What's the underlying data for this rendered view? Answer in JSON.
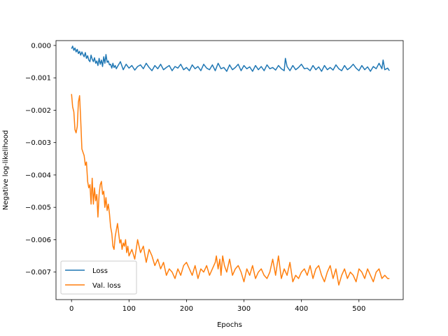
{
  "chart_data": {
    "type": "line",
    "title": "",
    "xlabel": "Epochs",
    "ylabel": "Negative log-likelihood",
    "xlim": [
      -27,
      577
    ],
    "ylim": [
      -0.00785,
      0.00015
    ],
    "xticks": [
      0,
      100,
      200,
      300,
      400,
      500
    ],
    "xtick_labels": [
      "0",
      "100",
      "200",
      "300",
      "400",
      "500"
    ],
    "yticks": [
      0,
      -0.001,
      -0.002,
      -0.003,
      -0.004,
      -0.005,
      -0.006,
      -0.007
    ],
    "ytick_labels": [
      "0.000",
      "−0.001",
      "−0.002",
      "−0.003",
      "−0.004",
      "−0.005",
      "−0.006",
      "−0.007"
    ],
    "grid": false,
    "legend_position": "lower-left",
    "series": [
      {
        "name": "Loss",
        "color": "#1f77b4",
        "x": [
          0,
          2,
          4,
          6,
          8,
          10,
          12,
          14,
          16,
          18,
          20,
          22,
          24,
          26,
          28,
          30,
          32,
          34,
          36,
          38,
          40,
          42,
          44,
          46,
          48,
          50,
          52,
          54,
          56,
          58,
          60,
          62,
          64,
          66,
          68,
          70,
          72,
          74,
          76,
          78,
          80,
          85,
          90,
          95,
          100,
          105,
          110,
          115,
          120,
          125,
          130,
          135,
          140,
          145,
          150,
          155,
          160,
          165,
          170,
          175,
          180,
          185,
          190,
          195,
          200,
          205,
          210,
          215,
          220,
          225,
          230,
          235,
          240,
          245,
          250,
          255,
          260,
          265,
          270,
          275,
          280,
          285,
          290,
          295,
          300,
          305,
          310,
          315,
          320,
          325,
          330,
          335,
          340,
          345,
          350,
          355,
          360,
          365,
          370,
          372,
          375,
          380,
          385,
          390,
          395,
          400,
          405,
          410,
          415,
          420,
          425,
          430,
          435,
          440,
          445,
          450,
          455,
          460,
          465,
          470,
          475,
          480,
          485,
          490,
          495,
          500,
          505,
          510,
          515,
          520,
          525,
          530,
          535,
          540,
          542,
          545,
          550,
          553
        ],
        "values": [
          -0.0001,
          -2e-05,
          -0.00015,
          -8e-05,
          -0.0002,
          -0.00012,
          -0.00025,
          -0.00018,
          -0.0003,
          -0.0002,
          -0.00028,
          -0.00035,
          -0.00022,
          -0.0004,
          -0.00032,
          -0.00045,
          -0.0005,
          -0.0003,
          -0.00042,
          -0.0005,
          -0.00038,
          -0.00055,
          -0.00048,
          -0.00062,
          -0.0004,
          -0.00058,
          -0.00045,
          -0.00065,
          -0.00035,
          -0.00055,
          -0.00028,
          -0.00052,
          -0.00048,
          -0.0006,
          -0.00058,
          -0.0007,
          -0.00055,
          -0.00068,
          -0.00062,
          -0.00072,
          -0.00065,
          -0.0005,
          -0.00075,
          -0.00058,
          -0.0007,
          -0.00062,
          -0.00076,
          -0.00065,
          -0.0006,
          -0.00072,
          -0.00055,
          -0.00068,
          -0.00078,
          -0.00062,
          -0.00072,
          -0.00058,
          -0.00075,
          -0.00068,
          -0.00062,
          -0.00078,
          -0.00065,
          -0.0007,
          -0.00058,
          -0.00075,
          -0.00068,
          -0.00078,
          -0.0006,
          -0.00072,
          -0.00065,
          -0.00078,
          -0.00058,
          -0.0007,
          -0.00075,
          -0.0006,
          -0.00078,
          -0.00055,
          -0.00072,
          -0.00068,
          -0.0008,
          -0.0006,
          -0.00075,
          -0.00068,
          -0.00058,
          -0.00078,
          -0.00062,
          -0.00072,
          -0.00066,
          -0.0008,
          -0.00062,
          -0.00075,
          -0.00065,
          -0.00078,
          -0.0006,
          -0.00072,
          -0.00068,
          -0.00076,
          -0.00062,
          -0.00072,
          -0.00078,
          -0.0004,
          -0.00065,
          -0.00078,
          -0.00062,
          -0.00075,
          -0.00068,
          -0.00058,
          -0.00072,
          -0.0007,
          -0.00078,
          -0.00062,
          -0.00075,
          -0.00066,
          -0.0008,
          -0.00062,
          -0.00075,
          -0.00068,
          -0.00076,
          -0.0006,
          -0.00072,
          -0.00078,
          -0.00062,
          -0.00075,
          -0.00068,
          -0.00058,
          -0.0007,
          -0.00078,
          -0.00062,
          -0.00075,
          -0.00066,
          -0.0008,
          -0.00065,
          -0.00072,
          -0.00055,
          -0.00072,
          -0.00045,
          -0.00075,
          -0.0007,
          -0.00078
        ]
      },
      {
        "name": "Val. loss",
        "color": "#ff7f0e",
        "x": [
          0,
          2,
          4,
          6,
          8,
          10,
          12,
          14,
          16,
          18,
          20,
          22,
          24,
          26,
          28,
          30,
          32,
          34,
          36,
          38,
          40,
          42,
          44,
          46,
          48,
          50,
          52,
          54,
          56,
          58,
          60,
          62,
          64,
          66,
          68,
          70,
          72,
          74,
          76,
          78,
          80,
          82,
          84,
          86,
          88,
          90,
          92,
          94,
          96,
          98,
          100,
          105,
          110,
          115,
          120,
          125,
          130,
          135,
          140,
          145,
          150,
          155,
          160,
          165,
          170,
          175,
          180,
          185,
          190,
          195,
          200,
          205,
          210,
          215,
          220,
          225,
          230,
          235,
          240,
          245,
          250,
          252,
          255,
          258,
          260,
          263,
          266,
          270,
          275,
          280,
          285,
          290,
          295,
          300,
          305,
          310,
          315,
          320,
          325,
          330,
          335,
          340,
          345,
          350,
          355,
          360,
          365,
          370,
          375,
          380,
          385,
          390,
          395,
          400,
          405,
          410,
          415,
          420,
          425,
          430,
          435,
          440,
          445,
          450,
          455,
          460,
          465,
          470,
          475,
          480,
          485,
          490,
          495,
          500,
          505,
          510,
          515,
          520,
          525,
          530,
          535,
          540,
          545,
          550,
          553
        ],
        "values": [
          -0.0015,
          -0.0019,
          -0.00205,
          -0.0026,
          -0.0027,
          -0.0025,
          -0.00175,
          -0.00155,
          -0.0023,
          -0.0032,
          -0.0033,
          -0.0034,
          -0.0037,
          -0.0036,
          -0.0042,
          -0.0044,
          -0.0043,
          -0.0049,
          -0.0041,
          -0.0049,
          -0.0044,
          -0.0048,
          -0.0046,
          -0.0053,
          -0.0046,
          -0.0043,
          -0.0042,
          -0.0046,
          -0.0045,
          -0.005,
          -0.0047,
          -0.0051,
          -0.0049,
          -0.0052,
          -0.0056,
          -0.0058,
          -0.0062,
          -0.0063,
          -0.0059,
          -0.0057,
          -0.0055,
          -0.0058,
          -0.0061,
          -0.006,
          -0.0063,
          -0.0061,
          -0.0062,
          -0.006,
          -0.0064,
          -0.0062,
          -0.0065,
          -0.0063,
          -0.0066,
          -0.006,
          -0.0064,
          -0.0062,
          -0.0067,
          -0.0063,
          -0.0065,
          -0.0068,
          -0.0066,
          -0.0069,
          -0.0067,
          -0.0071,
          -0.0069,
          -0.007,
          -0.0072,
          -0.0069,
          -0.0071,
          -0.0068,
          -0.0067,
          -0.0069,
          -0.0071,
          -0.0068,
          -0.0072,
          -0.0069,
          -0.007,
          -0.0068,
          -0.0071,
          -0.0069,
          -0.0067,
          -0.0065,
          -0.0069,
          -0.0066,
          -0.0071,
          -0.0065,
          -0.0068,
          -0.007,
          -0.0066,
          -0.0071,
          -0.0069,
          -0.0068,
          -0.007,
          -0.0073,
          -0.0069,
          -0.0071,
          -0.0068,
          -0.0072,
          -0.007,
          -0.0069,
          -0.0071,
          -0.0072,
          -0.007,
          -0.0066,
          -0.0071,
          -0.0065,
          -0.0072,
          -0.0069,
          -0.0071,
          -0.0067,
          -0.0073,
          -0.0071,
          -0.0072,
          -0.007,
          -0.0069,
          -0.0071,
          -0.0068,
          -0.0072,
          -0.0069,
          -0.0068,
          -0.0071,
          -0.0073,
          -0.007,
          -0.0068,
          -0.0072,
          -0.0069,
          -0.0074,
          -0.0071,
          -0.0069,
          -0.0072,
          -0.007,
          -0.0071,
          -0.0073,
          -0.0069,
          -0.007,
          -0.0072,
          -0.0069,
          -0.0071,
          -0.0073,
          -0.007,
          -0.0069,
          -0.0072,
          -0.0071,
          -0.0072,
          -0.0072
        ]
      }
    ]
  }
}
